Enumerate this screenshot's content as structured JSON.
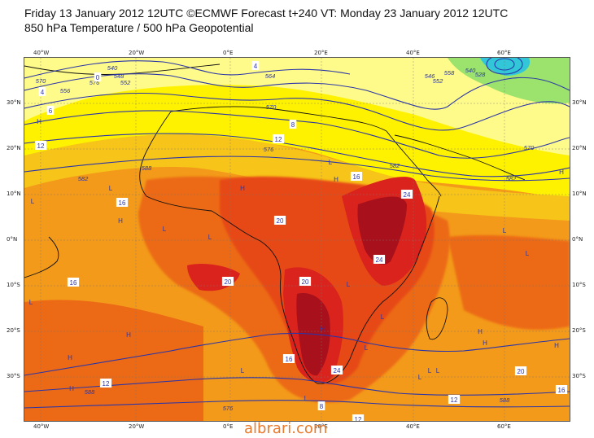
{
  "header": {
    "line1": "Friday 13 January 2012 12UTC ©ECMWF Forecast t+240 VT: Monday 23 January 2012 12UTC",
    "line2": "850 hPa Temperature / 500 hPa Geopotential"
  },
  "axes": {
    "lon_ticks": [
      "40°W",
      "20°W",
      "0°E",
      "20°E",
      "40°E",
      "60°E"
    ],
    "lat_ticks": [
      "30°N",
      "20°N",
      "10°N",
      "0°N",
      "10°S",
      "20°S",
      "30°S"
    ]
  },
  "map": {
    "colors": {
      "ocean_yellow": "#fff200",
      "pale_yellow": "#fffb8a",
      "gold": "#f7c419",
      "orange": "#f39a1a",
      "dark_orange": "#ec6a16",
      "red_orange": "#e64a15",
      "red": "#d9231c",
      "dark_red": "#a8101c",
      "green": "#9be36c",
      "cyan": "#31c7d8",
      "contour": "#2a35a8",
      "coast": "#111111"
    },
    "contour_labels": [
      "540",
      "548",
      "552",
      "556",
      "564",
      "570",
      "576",
      "582",
      "588",
      "570",
      "582",
      "546",
      "552",
      "558",
      "540",
      "528",
      "576",
      "570",
      "582",
      "588",
      "576",
      "588"
    ],
    "temp_labels": [
      "4",
      "6",
      "0",
      "4",
      "8",
      "12",
      "16",
      "20",
      "24",
      "24",
      "20",
      "20",
      "16",
      "16",
      "12",
      "12",
      "8",
      "12",
      "16",
      "12",
      "20",
      "24",
      "16"
    ],
    "pressure_letters": [
      "H",
      "L",
      "H",
      "L",
      "L",
      "H",
      "L",
      "H",
      "L",
      "L",
      "H",
      "L",
      "H",
      "L",
      "L",
      "H",
      "L",
      "H",
      "L",
      "L",
      "H",
      "H",
      "L",
      "H",
      "L",
      "L",
      "H",
      "L"
    ]
  },
  "watermark": "albrari.com"
}
